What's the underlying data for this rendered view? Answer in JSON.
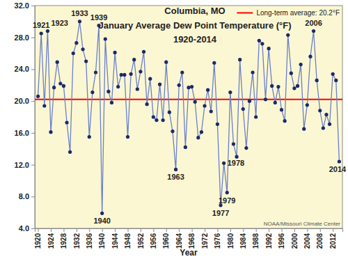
{
  "chart_data": {
    "type": "line",
    "title": [
      "Columbia, MO",
      "January Average Dew Point Temperature (°F)",
      "1920-2014"
    ],
    "x_label": "Year",
    "source": "NOAA/Missouri Climate Center",
    "x": [
      1920,
      1921,
      1922,
      1923,
      1924,
      1925,
      1926,
      1927,
      1928,
      1929,
      1930,
      1931,
      1932,
      1933,
      1934,
      1935,
      1936,
      1937,
      1938,
      1939,
      1940,
      1941,
      1942,
      1943,
      1944,
      1945,
      1946,
      1947,
      1948,
      1949,
      1950,
      1951,
      1952,
      1953,
      1954,
      1955,
      1956,
      1957,
      1958,
      1959,
      1960,
      1961,
      1962,
      1963,
      1964,
      1965,
      1966,
      1967,
      1968,
      1969,
      1970,
      1971,
      1972,
      1973,
      1974,
      1975,
      1976,
      1977,
      1978,
      1979,
      1980,
      1981,
      1982,
      1983,
      1984,
      1985,
      1986,
      1987,
      1988,
      1989,
      1990,
      1991,
      1992,
      1993,
      1994,
      1995,
      1996,
      1997,
      1998,
      1999,
      2000,
      2001,
      2002,
      2003,
      2004,
      2005,
      2006,
      2007,
      2008,
      2009,
      2010,
      2011,
      2012,
      2013,
      2014
    ],
    "values": [
      20.6,
      28.5,
      19.4,
      28.8,
      16.1,
      21.7,
      24.9,
      22.2,
      21.9,
      17.3,
      13.6,
      26.0,
      27.3,
      30.0,
      26.5,
      25.0,
      15.5,
      21.1,
      23.6,
      29.5,
      5.9,
      27.8,
      21.2,
      19.8,
      26.1,
      21.8,
      23.3,
      23.3,
      15.5,
      23.4,
      25.2,
      21.5,
      23.7,
      26.2,
      19.6,
      22.8,
      18.0,
      17.6,
      22.1,
      17.6,
      24.9,
      18.6,
      16.2,
      11.4,
      22.0,
      23.6,
      14.2,
      21.7,
      21.8,
      19.9,
      15.4,
      16.1,
      19.4,
      21.4,
      18.7,
      24.8,
      17.1,
      6.9,
      12.2,
      8.5,
      21.1,
      14.6,
      13.0,
      25.2,
      19.0,
      14.1,
      20.0,
      23.6,
      18.0,
      27.6,
      27.2,
      20.2,
      26.6,
      21.9,
      19.8,
      21.8,
      18.9,
      17.5,
      28.3,
      23.5,
      21.6,
      21.9,
      24.6,
      16.5,
      19.5,
      25.6,
      28.8,
      22.6,
      18.8,
      16.6,
      18.3,
      17.1,
      23.4,
      22.6,
      12.4
    ],
    "color": "#6a7fc8",
    "marker": "circle",
    "xlim": [
      1919,
      2015
    ],
    "xticks": [
      1920,
      1924,
      1928,
      1932,
      1936,
      1940,
      1944,
      1948,
      1952,
      1956,
      1960,
      1964,
      1968,
      1972,
      1976,
      1980,
      1984,
      1988,
      1992,
      1996,
      2000,
      2004,
      2008,
      2012
    ],
    "ylim": [
      4,
      32
    ],
    "yticks": [
      {
        "value": 4,
        "label": "4.0"
      },
      {
        "value": 8,
        "label": "8.0"
      },
      {
        "value": 12,
        "label": "12.0"
      },
      {
        "value": 16,
        "label": "16.0"
      },
      {
        "value": 20,
        "label": "20.0"
      },
      {
        "value": 24,
        "label": "24.0"
      },
      {
        "value": 28,
        "label": "28.0"
      },
      {
        "value": 32,
        "label": "32.0"
      }
    ],
    "grid": false,
    "average": {
      "value": 20.2,
      "label": "Long-term average: 20.2°F",
      "color": "#ff0000"
    },
    "annotations": [
      {
        "x": 1921,
        "label": "1921"
      },
      {
        "x": 1923,
        "label": "1923"
      },
      {
        "x": 1933,
        "label": "1933"
      },
      {
        "x": 1939,
        "label": "1939"
      },
      {
        "x": 1940,
        "label": "1940"
      },
      {
        "x": 1963,
        "label": "1963"
      },
      {
        "x": 1977,
        "label": "1977"
      },
      {
        "x": 1978,
        "label": "1978"
      },
      {
        "x": 1979,
        "label": "1979"
      },
      {
        "x": 2006,
        "label": "2006"
      },
      {
        "x": 2014,
        "label": "2014"
      }
    ]
  }
}
